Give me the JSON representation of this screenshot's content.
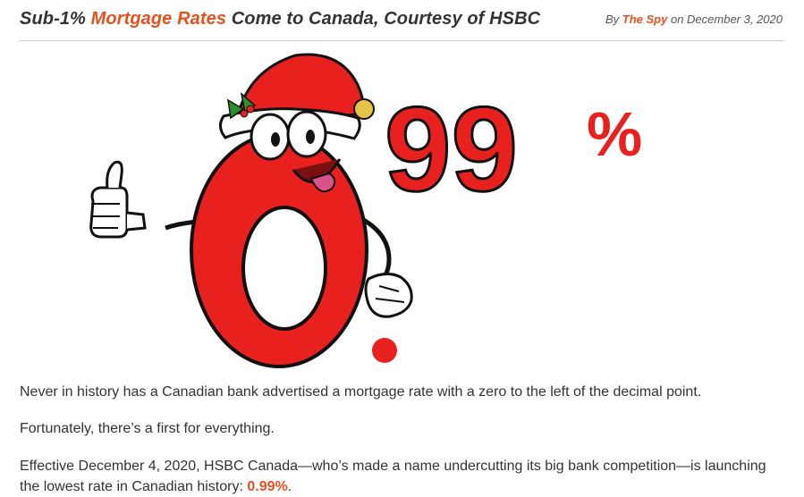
{
  "article": {
    "title_before": "Sub-1% ",
    "title_accent": "Mortgage Rates",
    "title_after": " Come to Canada, Courtesy of HSBC",
    "byline_prefix": "By ",
    "author": "The Spy",
    "byline_middle": " on ",
    "date": "December 3, 2020"
  },
  "hero": {
    "digits": "99",
    "percent": "%",
    "icon": "santa-hat-zero-mascot"
  },
  "body": {
    "p1": "Never in history has a Canadian bank advertised a mortgage rate with a zero to the left of the decimal point.",
    "p2": "Fortunately, there’s a first for everything.",
    "p3_text": "Effective December 4, 2020, HSBC Canada—who’s made a name undercutting its big bank competition—is launching the lowest rate in Canadian history: ",
    "p3_rate": "0.99%",
    "p3_end": "."
  },
  "colors": {
    "accent": "#e8501d",
    "hero_red": "#e8211f",
    "text": "#333333"
  }
}
